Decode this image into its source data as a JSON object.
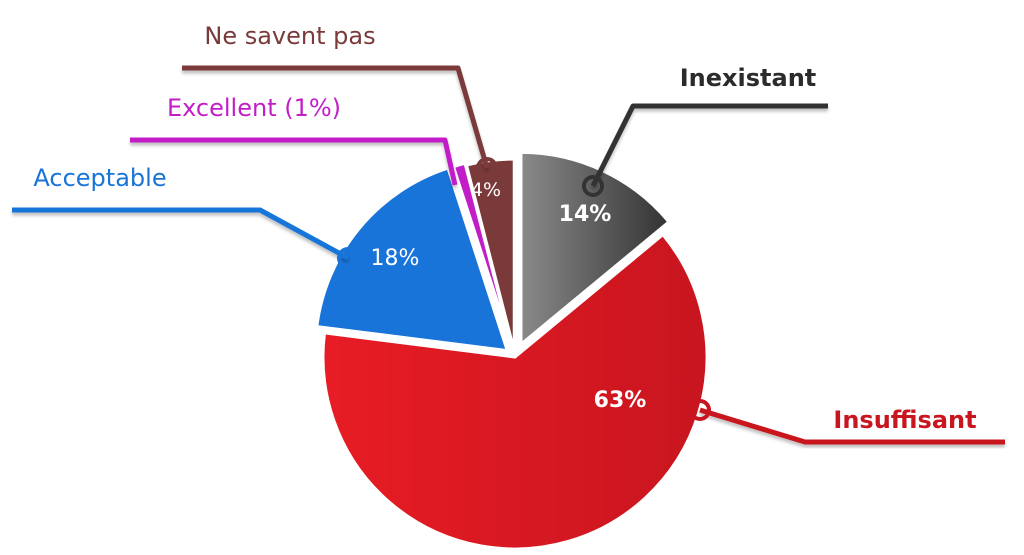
{
  "chart_data": {
    "type": "pie",
    "title": "",
    "slices": [
      {
        "label": "Inexistant",
        "value": 14,
        "display": "14%",
        "color": "#333333",
        "color_light": "#8a8a8a",
        "label_color": "#2b2b2b",
        "bold": true
      },
      {
        "label": "Insuffisant",
        "value": 63,
        "display": "63%",
        "color": "#c8151f",
        "color_light": "#e81c24",
        "label_color": "#c8151f",
        "bold": true
      },
      {
        "label": "Acceptable",
        "value": 18,
        "display": "18%",
        "color": "#1874d8",
        "color_light": "#1874d8",
        "label_color": "#1874d8",
        "bold": false
      },
      {
        "label": "Excellent (1%)",
        "value": 1,
        "display": "",
        "color": "#c21ec8",
        "color_light": "#c21ec8",
        "label_color": "#c21ec8",
        "bold": false
      },
      {
        "label": "Ne savent pas",
        "value": 4,
        "display": "4%",
        "color": "#7b3a3a",
        "color_light": "#7b3a3a",
        "label_color": "#7b3a3a",
        "bold": false
      }
    ]
  }
}
